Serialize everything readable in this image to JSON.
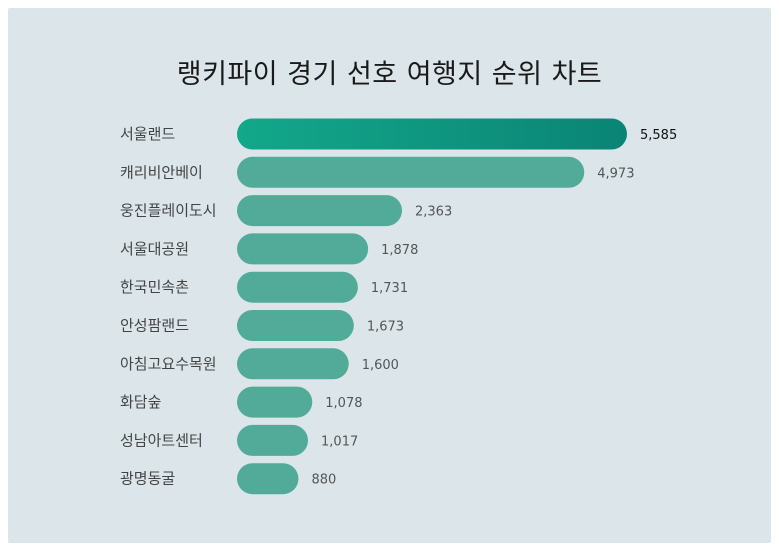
{
  "title": "랭키파이 경기 선호 여행지 순위 차트",
  "colors": {
    "background": "#dce6ea",
    "bar": "#52ab98",
    "bar_top_start": "#13a88a",
    "bar_top_end": "#0a8476"
  },
  "chart_data": {
    "type": "bar",
    "orientation": "horizontal",
    "title": "랭키파이 경기 선호 여행지 순위 차트",
    "categories": [
      "서울랜드",
      "캐리비안베이",
      "웅진플레이도시",
      "서울대공원",
      "한국민속촌",
      "안성팜랜드",
      "아침고요수목원",
      "화담숲",
      "성남아트센터",
      "광명동굴"
    ],
    "values": [
      5585,
      4973,
      2363,
      1878,
      1731,
      1673,
      1600,
      1078,
      1017,
      880
    ],
    "value_labels": [
      "5,585",
      "4,973",
      "2,363",
      "1,878",
      "1,731",
      "1,673",
      "1,600",
      "1,078",
      "1,017",
      "880"
    ],
    "xlabel": "",
    "ylabel": "",
    "grid": false
  }
}
